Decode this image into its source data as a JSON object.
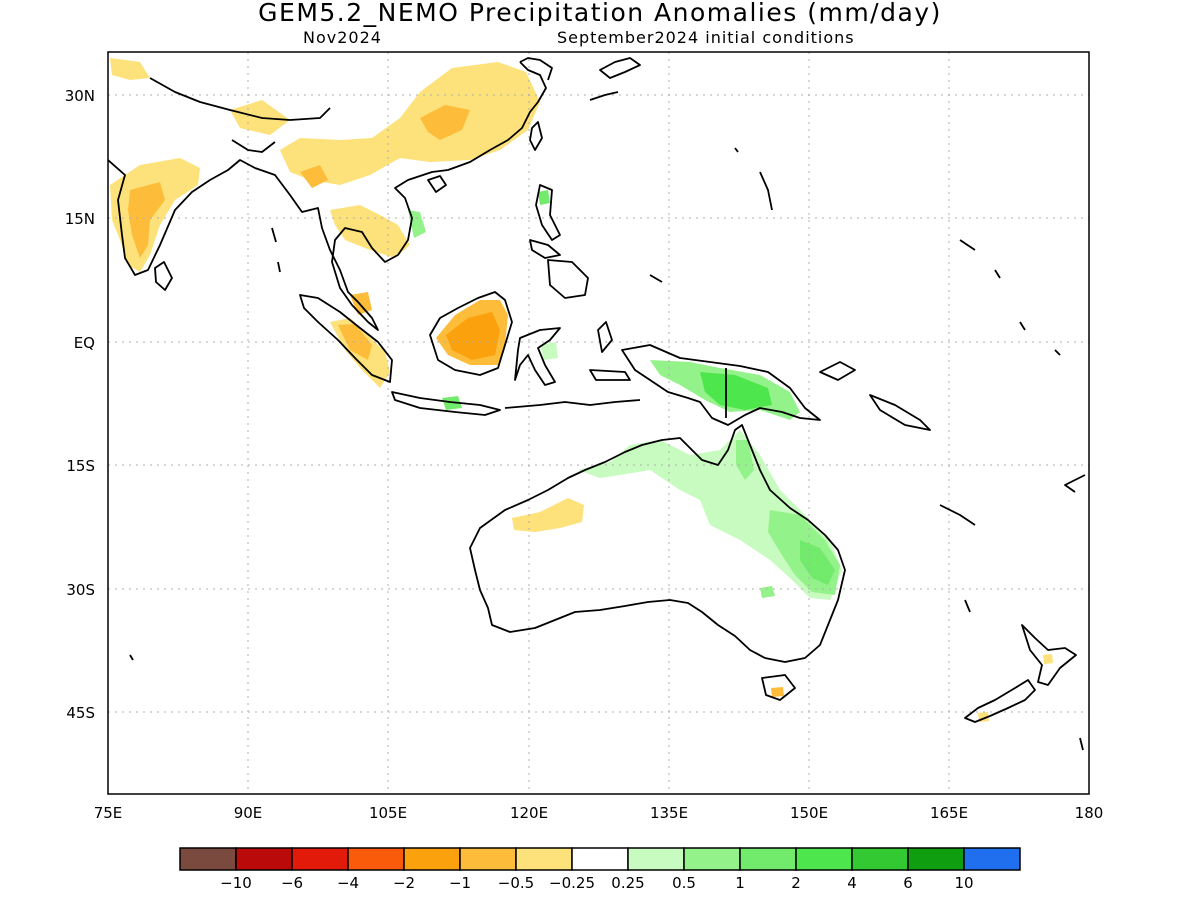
{
  "header": {
    "title": "GEM5.2_NEMO Precipitation Anomalies (mm/day)",
    "valid_period": "Nov2024",
    "init_conditions": "September2024 initial conditions"
  },
  "map": {
    "lat_ticks": [
      "30N",
      "15N",
      "EQ",
      "15S",
      "30S",
      "45S"
    ],
    "lon_ticks": [
      "75E",
      "90E",
      "105E",
      "120E",
      "135E",
      "150E",
      "165E",
      "180"
    ],
    "extent": {
      "lon_min": 75,
      "lon_max": 180,
      "lat_min": -55,
      "lat_max": 35
    },
    "anomaly_regions": [
      {
        "region": "India",
        "class": "-1 to -0.5"
      },
      {
        "region": "Southern China",
        "class": "-1 to -0.5"
      },
      {
        "region": "Borneo",
        "class": "-2 to -1"
      },
      {
        "region": "Sumatra",
        "class": "-1 to -0.5"
      },
      {
        "region": "Western Australia",
        "class": "-0.5 to -0.25"
      },
      {
        "region": "New Guinea",
        "class": "1 to 2"
      },
      {
        "region": "Northern and Eastern Australia",
        "class": "0.25 to 0.5"
      },
      {
        "region": "Queensland coast",
        "class": "1 to 2"
      }
    ]
  },
  "colorbar": {
    "colors": [
      "#7a4a3e",
      "#bb0a0a",
      "#e21a0a",
      "#f95b0b",
      "#fba10d",
      "#fdbd3a",
      "#fde17a",
      "#ffffff",
      "#c7fbbf",
      "#94f28a",
      "#72ea6c",
      "#4ee64d",
      "#32c932",
      "#0f9e0f",
      "#1f6fef"
    ],
    "labels": [
      "−10",
      "−6",
      "−4",
      "−2",
      "−1",
      "−0.5",
      "−0.25",
      "0.25",
      "0.5",
      "1",
      "2",
      "4",
      "6",
      "10"
    ]
  }
}
